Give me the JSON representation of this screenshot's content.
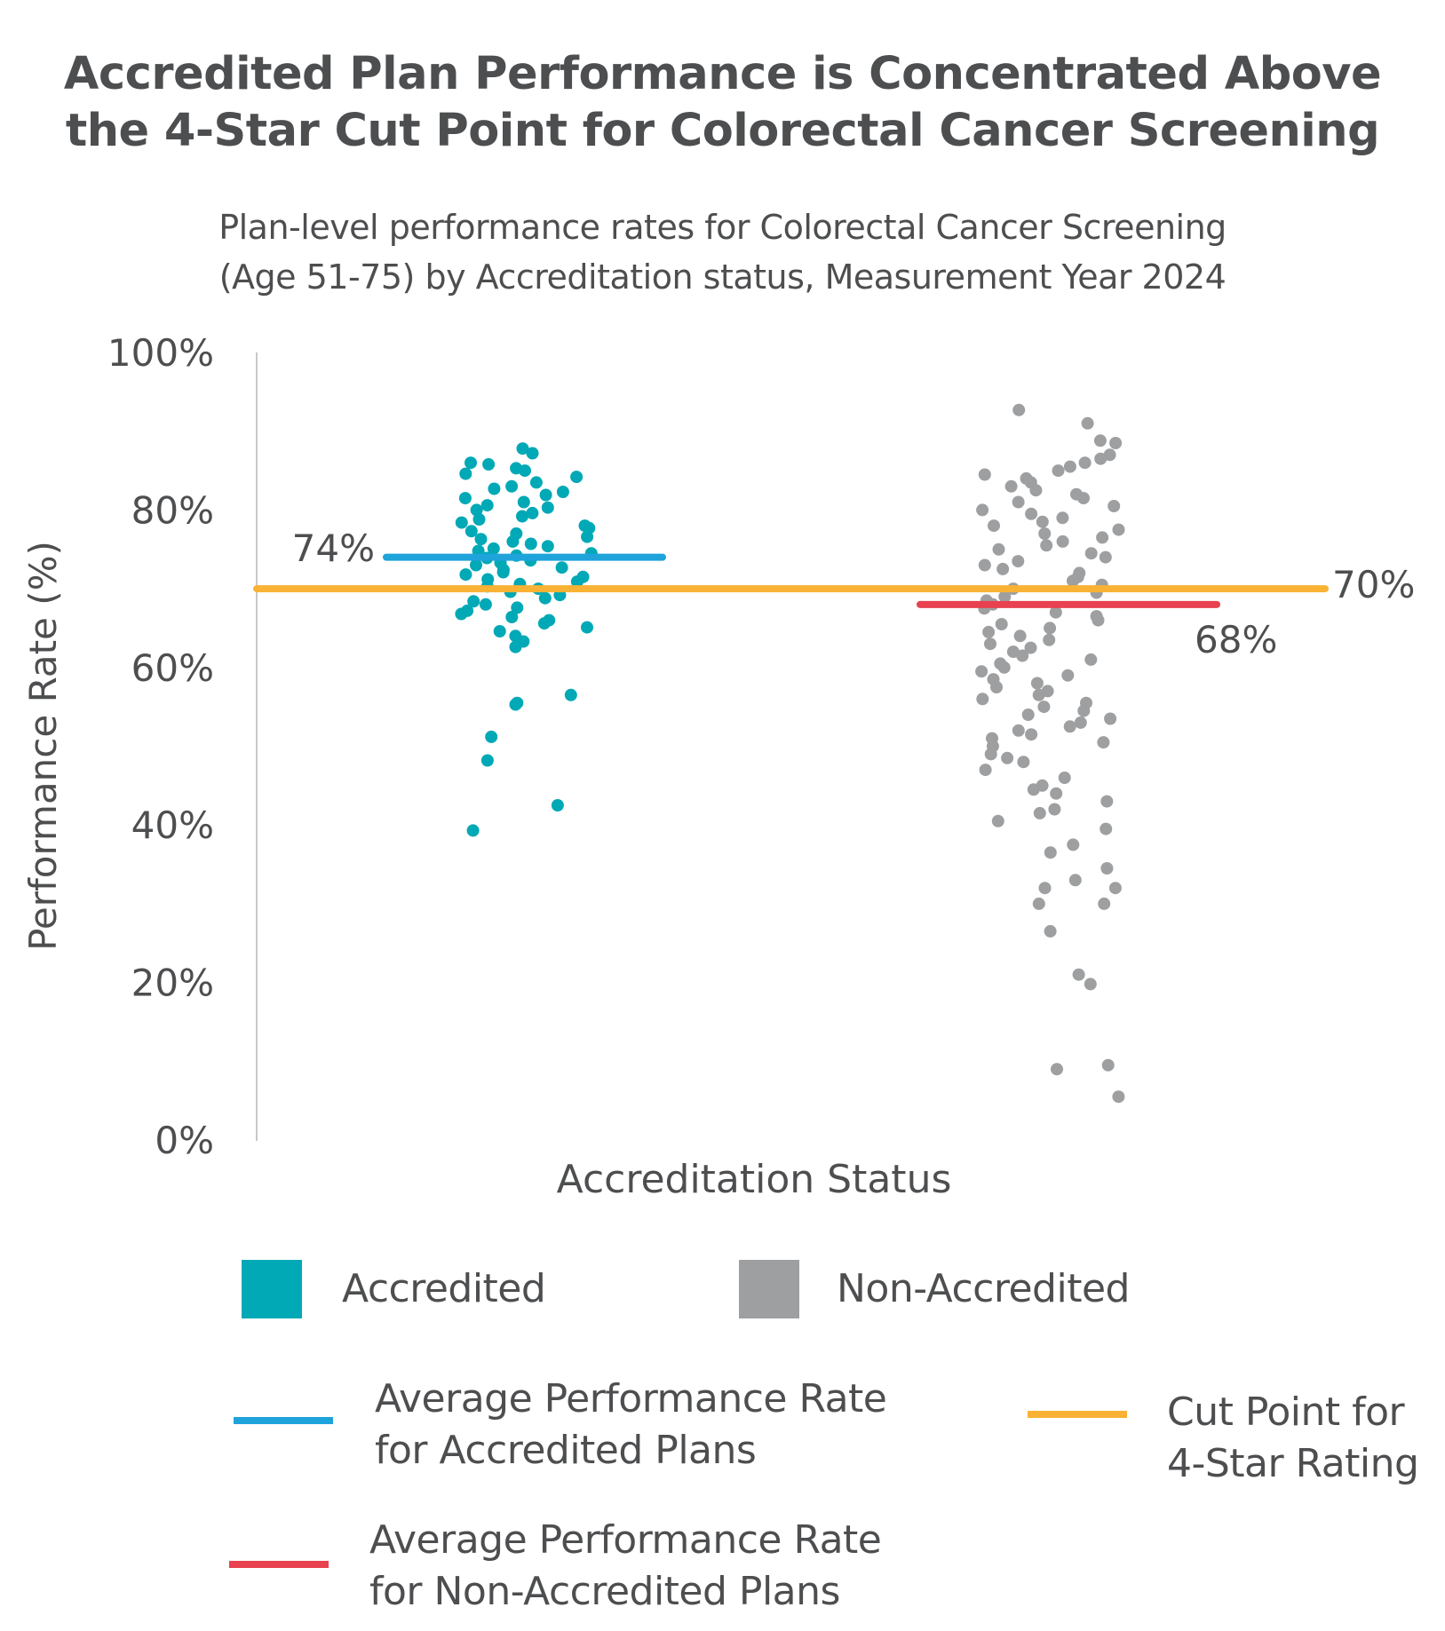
{
  "title": {
    "line1": "Accredited Plan Performance is Concentrated Above",
    "line2": "the 4-Star Cut Point for Colorectal Cancer Screening"
  },
  "subtitle": {
    "line1": "Plan-level performance rates for Colorectal Cancer Screening",
    "line2": "(Age 51-75) by Accreditation status, Measurement Year 2024"
  },
  "colors": {
    "accredited": "#00a9b5",
    "non_accredited": "#9d9fa1",
    "avg_accredited": "#1ea3db",
    "avg_non_accredited": "#e8414f",
    "cut_point": "#f9b233",
    "axis": "#c8c8c8"
  },
  "chart_data": {
    "type": "scatter",
    "xlabel": "Accreditation Status",
    "ylabel": "Performance Rate (%)",
    "ylim": [
      0,
      100
    ],
    "yticks": [
      "0%",
      "20%",
      "40%",
      "60%",
      "80%",
      "100%"
    ],
    "grid": false,
    "categories": [
      "Accredited",
      "Non-Accredited"
    ],
    "reference_lines": {
      "avg_accredited": {
        "value": 74,
        "label": "74%"
      },
      "avg_non_accredited": {
        "value": 68,
        "label": "68%"
      },
      "cut_point_4_star": {
        "value": 70,
        "label": "70%"
      }
    },
    "series": [
      {
        "name": "Accredited",
        "values": [
          87.8,
          87.2,
          86.0,
          85.8,
          85.3,
          85.0,
          84.6,
          84.2,
          83.5,
          83.0,
          82.7,
          82.3,
          81.9,
          81.5,
          81.0,
          80.6,
          80.3,
          80.0,
          79.6,
          79.2,
          78.8,
          78.4,
          78.0,
          77.7,
          77.3,
          77.0,
          76.6,
          76.3,
          76.0,
          75.7,
          75.4,
          75.1,
          74.8,
          74.5,
          74.2,
          73.9,
          73.6,
          73.3,
          73.0,
          72.7,
          72.4,
          72.1,
          71.8,
          71.5,
          71.2,
          70.9,
          70.6,
          70.3,
          70.0,
          69.6,
          69.2,
          68.8,
          68.4,
          68.0,
          67.6,
          67.2,
          66.8,
          66.4,
          66.0,
          65.6,
          65.1,
          64.6,
          64.0,
          63.3,
          62.6,
          56.5,
          55.5,
          55.3,
          51.2,
          48.2,
          42.5,
          39.3
        ]
      },
      {
        "name": "Non-Accredited",
        "values": [
          92.7,
          91.0,
          88.8,
          88.5,
          87.0,
          86.5,
          86.0,
          85.5,
          85.0,
          84.5,
          84.0,
          83.5,
          83.0,
          82.5,
          82.0,
          81.5,
          81.0,
          80.5,
          80.0,
          79.5,
          79.0,
          78.5,
          78.0,
          77.5,
          77.0,
          76.5,
          76.0,
          75.5,
          75.0,
          74.5,
          74.0,
          73.5,
          73.0,
          72.5,
          72.0,
          71.5,
          71.0,
          70.5,
          70.0,
          69.5,
          69.0,
          68.5,
          68.0,
          67.5,
          67.0,
          66.5,
          66.0,
          65.5,
          65.0,
          64.5,
          64.0,
          63.5,
          63.0,
          62.5,
          62.0,
          61.5,
          61.0,
          60.5,
          60.0,
          59.5,
          59.0,
          58.5,
          58.0,
          57.5,
          57.0,
          56.5,
          56.0,
          55.5,
          55.0,
          54.5,
          54.0,
          53.5,
          53.0,
          52.5,
          52.0,
          51.5,
          51.0,
          50.5,
          50.0,
          49.0,
          48.5,
          48.0,
          47.0,
          46.0,
          45.0,
          44.5,
          44.0,
          43.0,
          42.0,
          41.5,
          40.5,
          39.5,
          37.5,
          36.5,
          34.5,
          33.0,
          32.0,
          32.0,
          30.0,
          30.0,
          26.5,
          21.0,
          19.8,
          9.5,
          9.0,
          5.5
        ]
      }
    ]
  },
  "legend": {
    "accredited": "Accredited",
    "non_accredited": "Non-Accredited",
    "avg_accredited_line1": "Average Performance Rate",
    "avg_accredited_line2": "for Accredited Plans",
    "cut_point_line1": "Cut Point for",
    "cut_point_line2": "4-Star Rating",
    "avg_non_accredited_line1": "Average Performance Rate",
    "avg_non_accredited_line2": "for Non-Accredited Plans"
  }
}
